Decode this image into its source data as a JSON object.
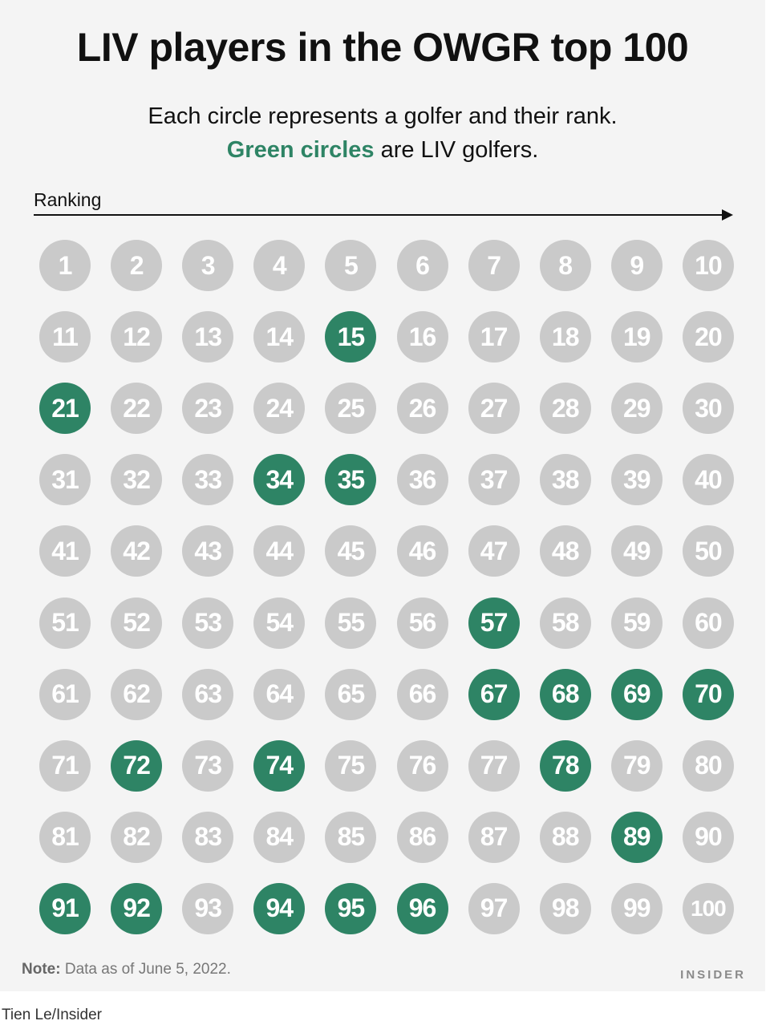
{
  "title": "LIV players in the OWGR top 100",
  "subtitle_line1": "Each circle represents a golfer and their rank.",
  "subtitle_green": "Green circles",
  "subtitle_rest": " are LIV golfers.",
  "axis_label": "Ranking",
  "note_label": "Note:",
  "note_text": " Data as of June 5, 2022.",
  "brand": "INSIDER",
  "credit": "Tien Le/Insider",
  "colors": {
    "liv": "#2e8465",
    "other": "#cacaca",
    "background": "#f4f4f4"
  },
  "chart_data": {
    "type": "table",
    "columns": 10,
    "ranks": [
      1,
      2,
      3,
      4,
      5,
      6,
      7,
      8,
      9,
      10,
      11,
      12,
      13,
      14,
      15,
      16,
      17,
      18,
      19,
      20,
      21,
      22,
      23,
      24,
      25,
      26,
      27,
      28,
      29,
      30,
      31,
      32,
      33,
      34,
      35,
      36,
      37,
      38,
      39,
      40,
      41,
      42,
      43,
      44,
      45,
      46,
      47,
      48,
      49,
      50,
      51,
      52,
      53,
      54,
      55,
      56,
      57,
      58,
      59,
      60,
      61,
      62,
      63,
      64,
      65,
      66,
      67,
      68,
      69,
      70,
      71,
      72,
      73,
      74,
      75,
      76,
      77,
      78,
      79,
      80,
      81,
      82,
      83,
      84,
      85,
      86,
      87,
      88,
      89,
      90,
      91,
      92,
      93,
      94,
      95,
      96,
      97,
      98,
      99,
      100
    ],
    "liv_ranks": [
      15,
      21,
      34,
      35,
      57,
      67,
      68,
      69,
      70,
      72,
      74,
      78,
      89,
      91,
      92,
      94,
      95,
      96
    ]
  }
}
